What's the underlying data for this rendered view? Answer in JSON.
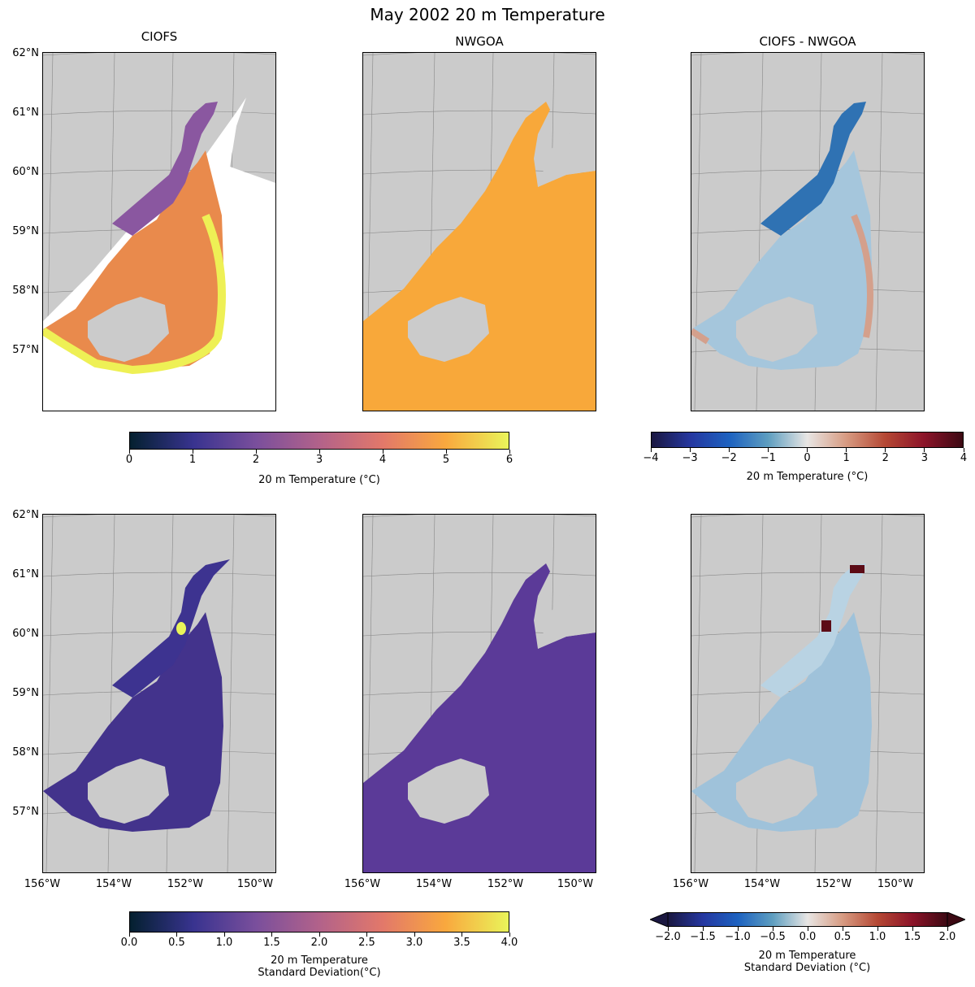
{
  "figure": {
    "title": "May 2002 20 m Temperature",
    "panel_titles": [
      "CIOFS",
      "NWGOA",
      "CIOFS - NWGOA"
    ],
    "lat_labels": [
      "62°N",
      "61°N",
      "60°N",
      "59°N",
      "58°N",
      "57°N"
    ],
    "lon_labels": [
      "156°W",
      "154°W",
      "152°W",
      "150°W"
    ]
  },
  "colorbars": {
    "temp": {
      "ticks": [
        "0",
        "1",
        "2",
        "3",
        "4",
        "5",
        "6"
      ],
      "label": "20 m Temperature (°C)",
      "colormap": [
        "#04202f",
        "#38338f",
        "#7a4f9c",
        "#b2628a",
        "#e2786a",
        "#f9a83e",
        "#e9f45a"
      ]
    },
    "temp_diff": {
      "ticks": [
        "−4",
        "−3",
        "−2",
        "−1",
        "0",
        "1",
        "2",
        "3",
        "4"
      ],
      "label": "20 m Temperature (°C)",
      "colormap": [
        "#1a1740",
        "#2537a0",
        "#1d62c0",
        "#5e9ec0",
        "#e8e6e4",
        "#d79b82",
        "#b54834",
        "#8c1429",
        "#3c0913"
      ]
    },
    "std": {
      "ticks": [
        "0.0",
        "0.5",
        "1.0",
        "1.5",
        "2.0",
        "2.5",
        "3.0",
        "3.5",
        "4.0"
      ],
      "label_line1": "20 m Temperature",
      "label_line2": "Standard Deviation(°C)",
      "colormap": [
        "#04202f",
        "#38338f",
        "#7a4f9c",
        "#b2628a",
        "#e2786a",
        "#f9a83e",
        "#e9f45a"
      ]
    },
    "std_diff": {
      "ticks": [
        "−2.0",
        "−1.5",
        "−1.0",
        "−0.5",
        "0.0",
        "0.5",
        "1.0",
        "1.5",
        "2.0"
      ],
      "label_line1": "20 m Temperature",
      "label_line2": "Standard Deviation (°C)",
      "colormap": [
        "#1a1740",
        "#2537a0",
        "#1d62c0",
        "#5e9ec0",
        "#e8e6e4",
        "#d79b82",
        "#b54834",
        "#8c1429",
        "#3c0913"
      ]
    }
  },
  "colors": {
    "land": "#cbcbcb",
    "ciofs_temp": "#e98a4c",
    "ciofs_temp_inlet": "#8a57a0",
    "ciofs_temp_edge": "#eef055",
    "nwgoa_temp": "#f8a83a",
    "diff_temp": "#a5c6dc",
    "diff_temp_neg": "#2f72b3",
    "diff_temp_pos": "#d4a08c",
    "ciofs_std": "#43338c",
    "nwgoa_std": "#5b3a98",
    "diff_std": "#9fc2da"
  }
}
